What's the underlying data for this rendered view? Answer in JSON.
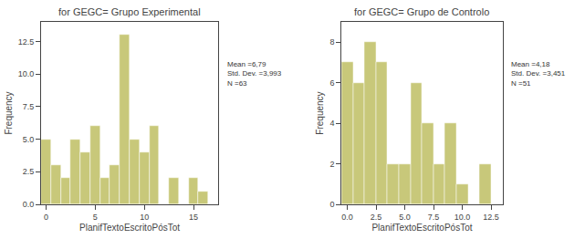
{
  "chart_data": [
    {
      "type": "histogram",
      "title": "for GEGC= Grupo Experimental",
      "xlabel": "PlanifTextoEscritoPósTot",
      "ylabel": "Frequency",
      "annotations": [
        "Mean =6,79",
        "Std. Dev. =3,993",
        "N =63"
      ],
      "bins": [
        -0.5,
        0.5,
        1.5,
        2.5,
        3.5,
        4.5,
        5.5,
        6.5,
        7.5,
        8.5,
        9.5,
        10.5,
        11.5,
        12.5,
        13.5,
        14.5,
        15.5,
        16.5,
        17.5
      ],
      "values": [
        5,
        3,
        2,
        5,
        4,
        6,
        2,
        3,
        13,
        5,
        4,
        6,
        0,
        2,
        0,
        2,
        1,
        0
      ],
      "color": "#c8c87a",
      "xlim": [
        -0.5,
        17.5
      ],
      "ylim": [
        0,
        14
      ],
      "xticks": [
        0,
        5,
        10,
        15
      ],
      "yticks": [
        {
          "value": 0,
          "label": "0.0"
        },
        2.5,
        {
          "value": 5,
          "label": "5.0"
        },
        7.5,
        {
          "value": 10,
          "label": "10.0"
        },
        12.5
      ],
      "grid": false
    },
    {
      "type": "histogram",
      "title": "for GEGC= Grupo de Controlo",
      "xlabel": "PlanifTextoEscritoPósTot",
      "ylabel": "Frequency",
      "annotations": [
        "Mean =4,18",
        "Std. Dev. =3,451",
        "N =51"
      ],
      "bins": [
        -0.5,
        0.5,
        1.5,
        2.5,
        3.5,
        4.5,
        5.5,
        6.5,
        7.5,
        8.5,
        9.5,
        10.5,
        11.5,
        12.5,
        13.5
      ],
      "values": [
        7,
        6,
        8,
        7,
        2,
        2,
        6,
        4,
        2,
        4,
        1,
        0,
        2,
        0
      ],
      "color": "#c8c87a",
      "xlim": [
        -0.5,
        13.5
      ],
      "ylim": [
        0,
        9
      ],
      "xticks": [
        {
          "value": 0,
          "label": "0.0"
        },
        2.5,
        {
          "value": 5,
          "label": "5.0"
        },
        7.5,
        {
          "value": 10,
          "label": "10.0"
        },
        12.5
      ],
      "yticks": [
        0,
        2,
        4,
        6,
        8
      ],
      "grid": false
    }
  ]
}
